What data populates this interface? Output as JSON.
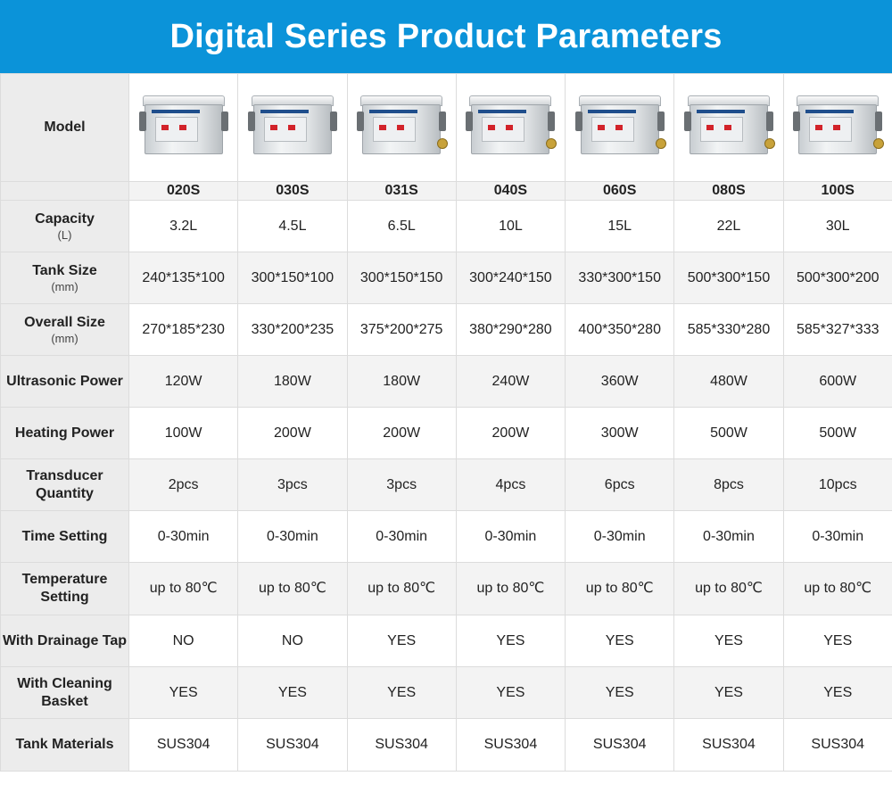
{
  "title": "Digital Series Product Parameters",
  "colors": {
    "banner": "#0b93d9",
    "label_bg": "#ececec",
    "alt_row_bg": "#f3f3f3"
  },
  "model_label": "Model",
  "models": [
    "020S",
    "030S",
    "031S",
    "040S",
    "060S",
    "080S",
    "100S"
  ],
  "drainage_tap_visible": [
    false,
    false,
    true,
    true,
    true,
    true,
    true
  ],
  "rows": [
    {
      "label": "Capacity",
      "unit": "(L)",
      "values": [
        "3.2L",
        "4.5L",
        "6.5L",
        "10L",
        "15L",
        "22L",
        "30L"
      ]
    },
    {
      "label": "Tank Size",
      "unit": "(mm)",
      "values": [
        "240*135*100",
        "300*150*100",
        "300*150*150",
        "300*240*150",
        "330*300*150",
        "500*300*150",
        "500*300*200"
      ]
    },
    {
      "label": "Overall Size",
      "unit": "(mm)",
      "values": [
        "270*185*230",
        "330*200*235",
        "375*200*275",
        "380*290*280",
        "400*350*280",
        "585*330*280",
        "585*327*333"
      ]
    },
    {
      "label": "Ultrasonic Power",
      "unit": "",
      "values": [
        "120W",
        "180W",
        "180W",
        "240W",
        "360W",
        "480W",
        "600W"
      ]
    },
    {
      "label": "Heating Power",
      "unit": "",
      "values": [
        "100W",
        "200W",
        "200W",
        "200W",
        "300W",
        "500W",
        "500W"
      ]
    },
    {
      "label": "Transducer Quantity",
      "unit": "",
      "values": [
        "2pcs",
        "3pcs",
        "3pcs",
        "4pcs",
        "6pcs",
        "8pcs",
        "10pcs"
      ]
    },
    {
      "label": "Time Setting",
      "unit": "",
      "values": [
        "0-30min",
        "0-30min",
        "0-30min",
        "0-30min",
        "0-30min",
        "0-30min",
        "0-30min"
      ]
    },
    {
      "label": "Temperature Setting",
      "unit": "",
      "values": [
        "up to 80℃",
        "up to 80℃",
        "up to 80℃",
        "up to 80℃",
        "up to 80℃",
        "up to 80℃",
        "up to 80℃"
      ]
    },
    {
      "label": "With Drainage Tap",
      "unit": "",
      "values": [
        "NO",
        "NO",
        "YES",
        "YES",
        "YES",
        "YES",
        "YES"
      ]
    },
    {
      "label": "With Cleaning Basket",
      "unit": "",
      "values": [
        "YES",
        "YES",
        "YES",
        "YES",
        "YES",
        "YES",
        "YES"
      ]
    },
    {
      "label": "Tank Materials",
      "unit": "",
      "values": [
        "SUS304",
        "SUS304",
        "SUS304",
        "SUS304",
        "SUS304",
        "SUS304",
        "SUS304"
      ]
    }
  ]
}
